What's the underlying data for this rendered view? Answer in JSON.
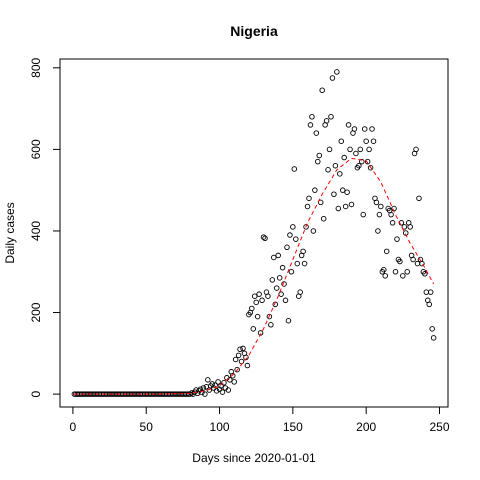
{
  "chart_data": {
    "type": "scatter",
    "title": "Nigeria",
    "x_label": "Days since 2020-01-01",
    "y_label": "Daily cases",
    "x": [
      1,
      2,
      3,
      4,
      5,
      6,
      7,
      8,
      9,
      10,
      11,
      12,
      13,
      14,
      15,
      16,
      17,
      18,
      19,
      20,
      21,
      22,
      23,
      24,
      25,
      26,
      27,
      28,
      29,
      30,
      31,
      32,
      33,
      34,
      35,
      36,
      37,
      38,
      39,
      40,
      41,
      42,
      43,
      44,
      45,
      46,
      47,
      48,
      49,
      50,
      51,
      52,
      53,
      54,
      55,
      56,
      57,
      58,
      59,
      60,
      61,
      62,
      63,
      64,
      65,
      66,
      67,
      68,
      69,
      70,
      71,
      72,
      73,
      74,
      75,
      76,
      77,
      78,
      79,
      80,
      81,
      82,
      83,
      84,
      85,
      86,
      87,
      88,
      89,
      90,
      91,
      92,
      93,
      94,
      95,
      96,
      97,
      98,
      99,
      100,
      101,
      102,
      103,
      104,
      105,
      106,
      107,
      108,
      109,
      110,
      111,
      112,
      113,
      114,
      115,
      116,
      117,
      118,
      119,
      120,
      121,
      122,
      123,
      124,
      125,
      126,
      127,
      128,
      129,
      130,
      131,
      132,
      133,
      134,
      135,
      136,
      137,
      138,
      139,
      140,
      141,
      142,
      143,
      144,
      145,
      146,
      147,
      148,
      149,
      150,
      151,
      152,
      153,
      154,
      155,
      156,
      157,
      158,
      159,
      160,
      161,
      162,
      163,
      164,
      165,
      166,
      167,
      168,
      169,
      170,
      171,
      172,
      173,
      174,
      175,
      176,
      177,
      178,
      179,
      180,
      181,
      182,
      183,
      184,
      185,
      186,
      187,
      188,
      189,
      190,
      191,
      192,
      193,
      194,
      195,
      196,
      197,
      198,
      199,
      200,
      201,
      202,
      203,
      204,
      205,
      206,
      207,
      208,
      209,
      210,
      211,
      212,
      213,
      214,
      215,
      216,
      217,
      218,
      219,
      220,
      221,
      222,
      223,
      224,
      225,
      226,
      227,
      228,
      229,
      230,
      231,
      232,
      233,
      234,
      235,
      236,
      237,
      238,
      239,
      240,
      241,
      242,
      243,
      244,
      245,
      246
    ],
    "y": [
      0,
      0,
      0,
      0,
      0,
      0,
      0,
      0,
      0,
      0,
      0,
      0,
      0,
      0,
      0,
      0,
      0,
      0,
      0,
      0,
      0,
      0,
      0,
      0,
      0,
      0,
      0,
      0,
      0,
      0,
      0,
      0,
      0,
      0,
      0,
      0,
      0,
      0,
      0,
      0,
      0,
      0,
      0,
      0,
      0,
      0,
      0,
      0,
      0,
      0,
      0,
      0,
      0,
      0,
      0,
      0,
      0,
      0,
      0,
      0,
      0,
      0,
      0,
      0,
      0,
      0,
      0,
      0,
      0,
      0,
      0,
      0,
      0,
      0,
      0,
      0,
      0,
      0,
      0,
      0,
      3,
      0,
      5,
      10,
      2,
      8,
      12,
      4,
      15,
      0,
      18,
      35,
      10,
      20,
      25,
      15,
      22,
      8,
      30,
      12,
      20,
      5,
      28,
      15,
      40,
      10,
      35,
      55,
      45,
      30,
      85,
      60,
      95,
      110,
      80,
      112,
      100,
      90,
      70,
      195,
      200,
      210,
      160,
      240,
      225,
      190,
      245,
      150,
      230,
      385,
      382,
      250,
      240,
      190,
      170,
      280,
      335,
      220,
      260,
      340,
      285,
      245,
      310,
      270,
      230,
      360,
      180,
      390,
      300,
      410,
      552,
      380,
      320,
      240,
      250,
      340,
      350,
      320,
      410,
      460,
      480,
      660,
      680,
      400,
      500,
      640,
      570,
      585,
      470,
      745,
      430,
      660,
      670,
      550,
      600,
      680,
      775,
      490,
      560,
      790,
      455,
      540,
      620,
      500,
      580,
      460,
      495,
      660,
      600,
      465,
      640,
      650,
      590,
      555,
      560,
      600,
      570,
      440,
      650,
      620,
      570,
      600,
      555,
      650,
      620,
      480,
      470,
      400,
      440,
      460,
      300,
      305,
      290,
      350,
      455,
      450,
      440,
      420,
      455,
      300,
      380,
      330,
      325,
      420,
      290,
      410,
      395,
      300,
      420,
      410,
      340,
      330,
      590,
      600,
      320,
      480,
      330,
      320,
      300,
      295,
      250,
      230,
      220,
      250,
      160,
      138
    ],
    "fit": {
      "color": "#ff0000",
      "x": [
        1,
        20,
        40,
        60,
        80,
        90,
        100,
        110,
        120,
        130,
        140,
        150,
        160,
        170,
        180,
        190,
        200,
        210,
        220,
        230,
        240,
        246
      ],
      "y": [
        0,
        0,
        0,
        0,
        2,
        8,
        20,
        50,
        95,
        160,
        240,
        330,
        420,
        490,
        550,
        578,
        572,
        520,
        440,
        370,
        310,
        270
      ]
    },
    "color": "#000000",
    "xlim": [
      -8.8,
      255.8
    ],
    "xticks": [
      0,
      50,
      100,
      150,
      200,
      250
    ],
    "ylim": [
      -31.6,
      821.6
    ],
    "yticks": [
      0,
      200,
      400,
      600,
      800
    ]
  }
}
